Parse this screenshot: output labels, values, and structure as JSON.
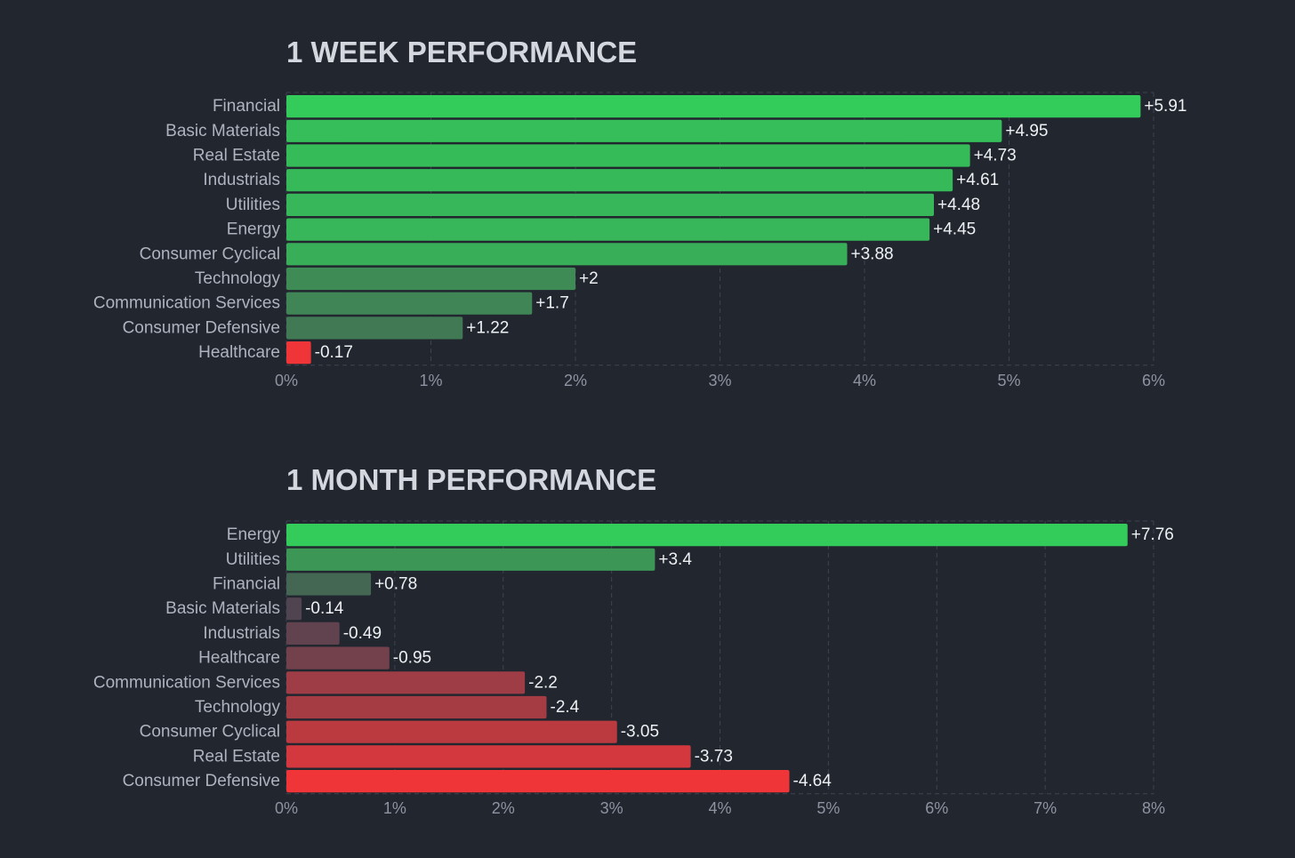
{
  "chart_data": [
    {
      "type": "bar",
      "orientation": "horizontal",
      "title": "1 WEEK PERFORMANCE",
      "categories": [
        "Financial",
        "Basic Materials",
        "Real Estate",
        "Industrials",
        "Utilities",
        "Energy",
        "Consumer Cyclical",
        "Technology",
        "Communication Services",
        "Consumer Defensive",
        "Healthcare"
      ],
      "values": [
        5.91,
        4.95,
        4.73,
        4.61,
        4.48,
        4.45,
        3.88,
        2,
        1.7,
        1.22,
        -0.17
      ],
      "value_labels": [
        "+5.91",
        "+4.95",
        "+4.73",
        "+4.61",
        "+4.48",
        "+4.45",
        "+3.88",
        "+2",
        "+1.7",
        "+1.22",
        "-0.17"
      ],
      "bar_length": "absolute value",
      "xlim": [
        0,
        6
      ],
      "xticks": [
        "0%",
        "1%",
        "2%",
        "3%",
        "4%",
        "5%",
        "6%"
      ],
      "grid": true
    },
    {
      "type": "bar",
      "orientation": "horizontal",
      "title": "1 MONTH PERFORMANCE",
      "categories": [
        "Energy",
        "Utilities",
        "Financial",
        "Basic Materials",
        "Industrials",
        "Healthcare",
        "Communication Services",
        "Technology",
        "Consumer Cyclical",
        "Real Estate",
        "Consumer Defensive"
      ],
      "values": [
        7.76,
        3.4,
        0.78,
        -0.14,
        -0.49,
        -0.95,
        -2.2,
        -2.4,
        -3.05,
        -3.73,
        -4.64
      ],
      "value_labels": [
        "+7.76",
        "+3.4",
        "+0.78",
        "-0.14",
        "-0.49",
        "-0.95",
        "-2.2",
        "-2.4",
        "-3.05",
        "-3.73",
        "-4.64"
      ],
      "bar_length": "absolute value",
      "xlim": [
        0,
        8
      ],
      "xticks": [
        "0%",
        "1%",
        "2%",
        "3%",
        "4%",
        "5%",
        "6%",
        "7%",
        "8%"
      ],
      "grid": true
    }
  ],
  "colors": {
    "background": "#22262f",
    "strong_positive": "#33cc5a",
    "strong_negative": "#ef3538",
    "neutral": "#4a4552"
  }
}
